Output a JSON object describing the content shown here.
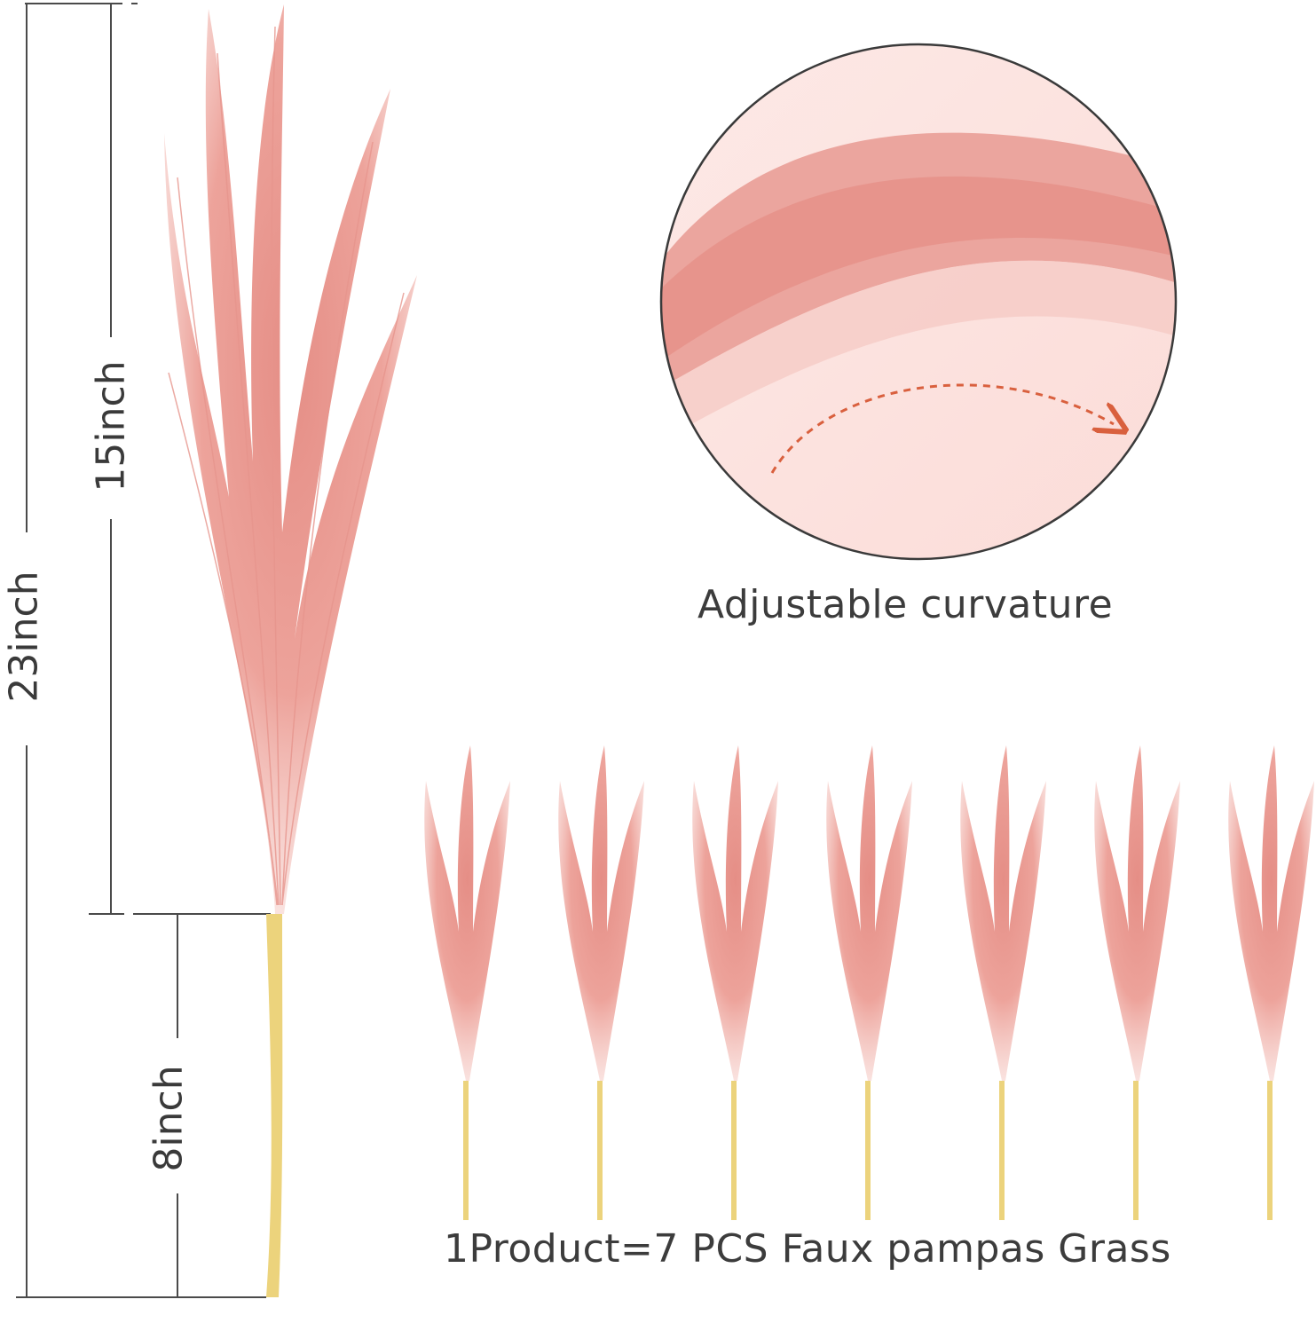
{
  "dimensions": {
    "total": "23inch",
    "plume": "15inch",
    "stem": "8inch"
  },
  "detail": {
    "caption": "Adjustable curvature"
  },
  "bundle": {
    "caption": "1Product=7 PCS Faux pampas Grass",
    "stem_count": 7
  },
  "colors": {
    "plume": "#e9a19a",
    "plume_light": "#f6cdc7",
    "stem": "#ecd37c",
    "line": "#4a4a4a",
    "arrow": "#d9603e",
    "text": "#3a3a3a"
  }
}
